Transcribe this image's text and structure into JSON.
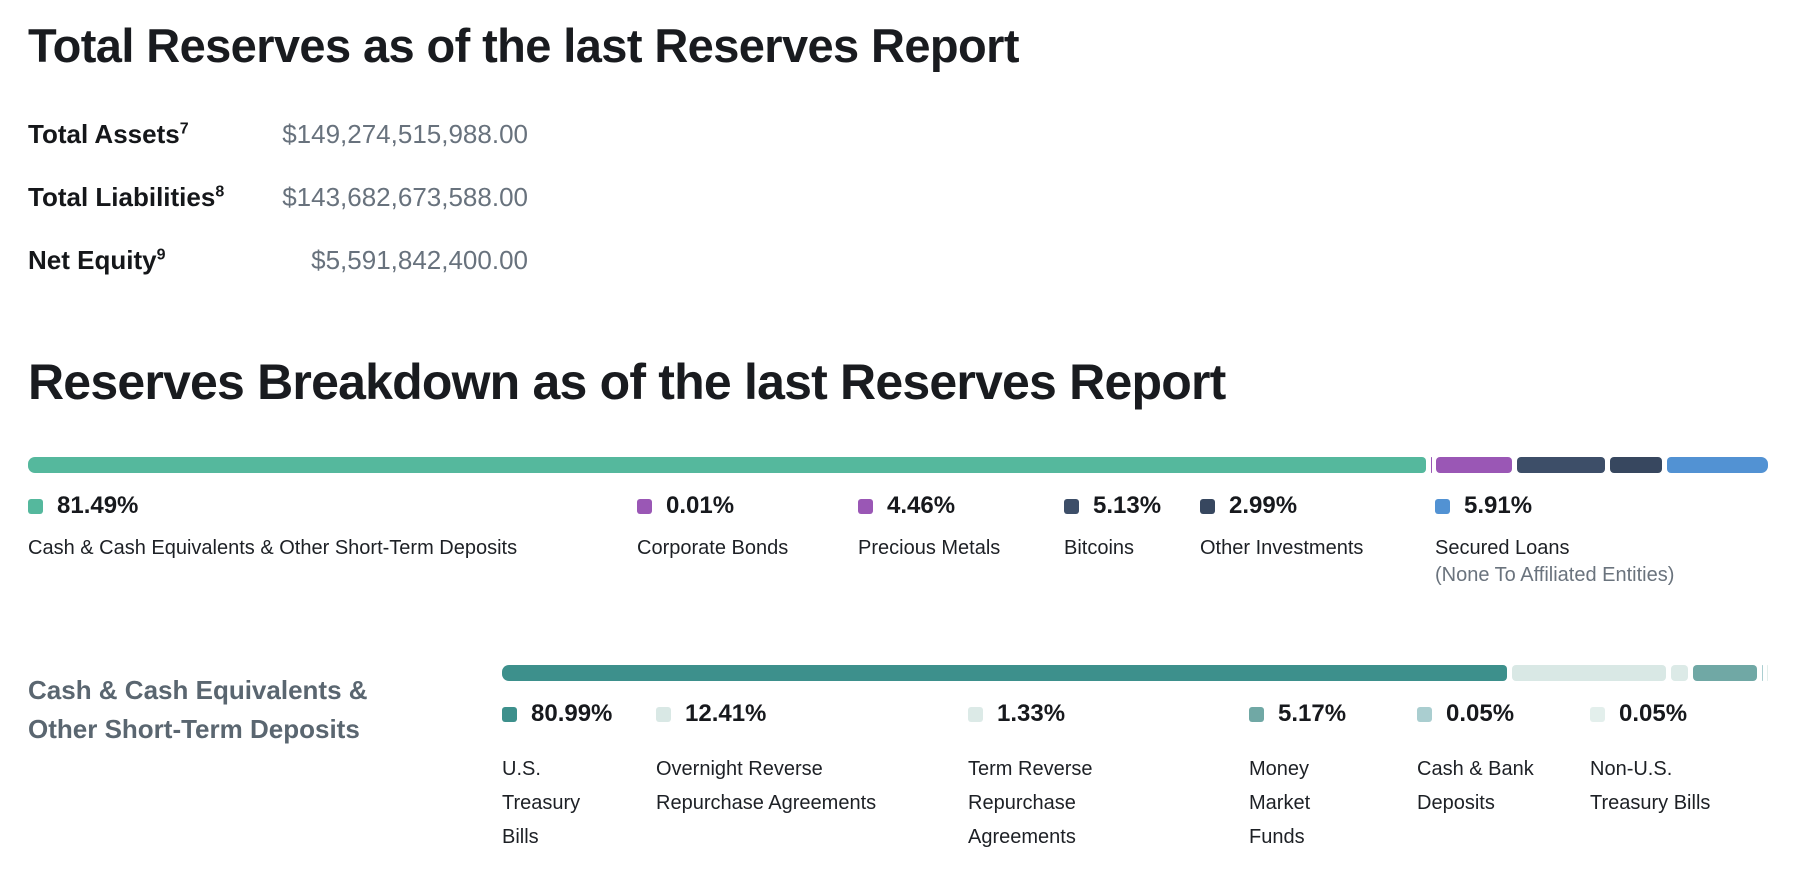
{
  "header": {
    "title": "Total Reserves as of the last Reserves Report"
  },
  "totals": {
    "rows": [
      {
        "label": "Total Assets",
        "footnote": "7",
        "value": "$149,274,515,988.00"
      },
      {
        "label": "Total Liabilities",
        "footnote": "8",
        "value": "$143,682,673,588.00"
      },
      {
        "label": "Net Equity",
        "footnote": "9",
        "value": "$5,591,842,400.00"
      }
    ]
  },
  "breakdown": {
    "title": "Reserves Breakdown as of the last Reserves Report"
  },
  "cash_section": {
    "title_line1": "Cash & Cash Equivalents &",
    "title_line2": "Other Short-Term Deposits"
  },
  "chart_data": [
    {
      "type": "bar",
      "variant": "stacked-horizontal",
      "title": "Reserves Breakdown as of the last Reserves Report",
      "unit": "%",
      "total": 100,
      "segments": [
        {
          "label": "Cash & Cash Equivalents & Other Short-Term Deposits",
          "value": 81.49,
          "pct": "81.49%",
          "color": "#55B89D"
        },
        {
          "label": "Corporate Bonds",
          "value": 0.01,
          "pct": "0.01%",
          "color": "#9A57B5"
        },
        {
          "label": "Precious Metals",
          "value": 4.46,
          "pct": "4.46%",
          "color": "#9A57B5"
        },
        {
          "label": "Bitcoins",
          "value": 5.13,
          "pct": "5.13%",
          "color": "#3D4E68"
        },
        {
          "label": "Other Investments",
          "value": 2.99,
          "pct": "2.99%",
          "color": "#37475F"
        },
        {
          "label": "Secured Loans",
          "sublabel": "(None To Affiliated Entities)",
          "value": 5.91,
          "pct": "5.91%",
          "color": "#5292D3"
        }
      ]
    },
    {
      "type": "bar",
      "variant": "stacked-horizontal",
      "title": "Cash & Cash Equivalents & Other Short-Term Deposits",
      "unit": "%",
      "total": 100,
      "segments": [
        {
          "label": "U.S. Treasury Bills",
          "value": 80.99,
          "pct": "80.99%",
          "color": "#3D908C"
        },
        {
          "label": "Overnight Reverse Repurchase Agreements",
          "value": 12.41,
          "pct": "12.41%",
          "color": "#D9E8E5"
        },
        {
          "label": "Term Reverse Repurchase Agreements",
          "value": 1.33,
          "pct": "1.33%",
          "color": "#DCEAE7"
        },
        {
          "label": "Money Market Funds",
          "value": 5.17,
          "pct": "5.17%",
          "color": "#70A8A5"
        },
        {
          "label": "Cash & Bank Deposits",
          "value": 0.05,
          "pct": "0.05%",
          "color": "#AACED0"
        },
        {
          "label": "Non-U.S. Treasury Bills",
          "value": 0.05,
          "pct": "0.05%",
          "color": "#E3EFEC"
        }
      ]
    }
  ]
}
